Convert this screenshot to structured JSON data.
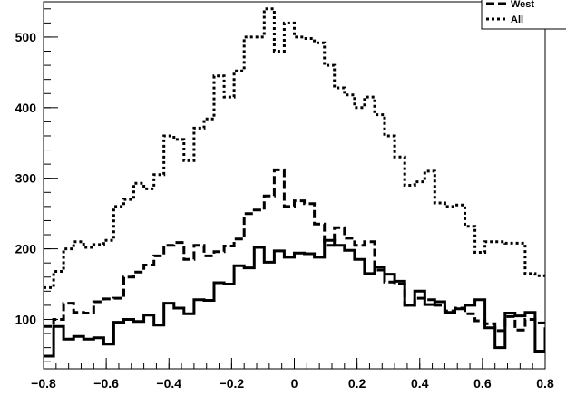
{
  "chart_data": {
    "type": "line",
    "title": "",
    "xlabel": "",
    "ylabel": "",
    "xlim": [
      -0.8,
      0.8
    ],
    "ylim": [
      30,
      550
    ],
    "x_ticks": [
      "−0.8",
      "−0.6",
      "−0.4",
      "−0.2",
      "0",
      "0.2",
      "0.4",
      "0.6",
      "0.8"
    ],
    "x_tick_values": [
      -0.8,
      -0.6,
      -0.4,
      -0.2,
      0,
      0.2,
      0.4,
      0.6,
      0.8
    ],
    "y_ticks": [
      "100",
      "200",
      "300",
      "400",
      "500"
    ],
    "y_tick_values": [
      100,
      200,
      300,
      400,
      500
    ],
    "grid": false,
    "legend_position": "top-right",
    "bin_edges_start": -0.8,
    "bin_width": 0.032,
    "series": [
      {
        "name": "",
        "style": "solid",
        "values": [
          48,
          90,
          72,
          76,
          72,
          74,
          65,
          96,
          100,
          97,
          106,
          92,
          123,
          116,
          108,
          128,
          127,
          152,
          150,
          176,
          173,
          202,
          181,
          197,
          188,
          194,
          193,
          188,
          212,
          205,
          198,
          185,
          165,
          174,
          164,
          154,
          120,
          140,
          121,
          125,
          110,
          115,
          120,
          128,
          88,
          60,
          109,
          105,
          110,
          55,
          78
        ]
      },
      {
        "name": "West",
        "style": "dashed",
        "values": [
          90,
          100,
          123,
          110,
          109,
          125,
          129,
          130,
          160,
          167,
          177,
          190,
          205,
          209,
          185,
          205,
          190,
          196,
          204,
          214,
          250,
          255,
          275,
          312,
          260,
          268,
          264,
          235,
          205,
          230,
          215,
          205,
          210,
          170,
          153,
          150,
          120,
          130,
          128,
          120,
          112,
          116,
          108,
          98,
          94,
          84,
          104,
          85,
          100,
          95,
          75
        ]
      },
      {
        "name": "All",
        "style": "dotted",
        "values": [
          145,
          168,
          200,
          210,
          202,
          206,
          212,
          260,
          270,
          293,
          285,
          305,
          360,
          355,
          325,
          371,
          384,
          445,
          415,
          452,
          500,
          500,
          540,
          480,
          520,
          500,
          498,
          492,
          460,
          428,
          418,
          400,
          415,
          390,
          360,
          330,
          290,
          295,
          310,
          265,
          260,
          262,
          232,
          195,
          210,
          210,
          208,
          208,
          165,
          162,
          165
        ]
      }
    ]
  }
}
